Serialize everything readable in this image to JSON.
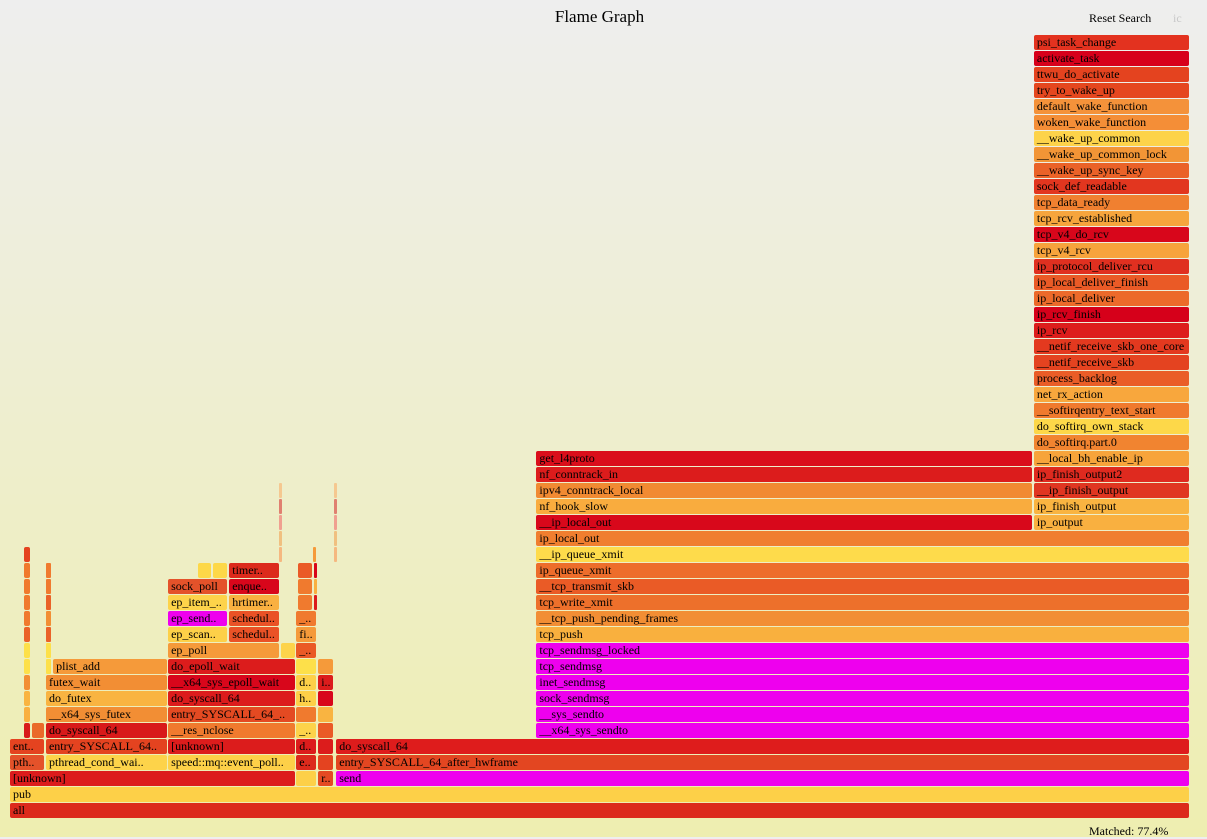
{
  "header": {
    "title": "Flame Graph",
    "reset_search": "Reset Search",
    "ic": "ic"
  },
  "footer": {
    "matched": "Matched: 77.4%"
  },
  "flame_graph": {
    "units": "percent of samples",
    "frame_fields": [
      "name",
      "depth",
      "start_pct",
      "end_pct",
      "color"
    ],
    "frames": [
      [
        "all",
        0,
        0,
        100,
        "#dc2a1c"
      ],
      [
        "pub",
        1,
        0,
        100,
        "#fdd048"
      ],
      [
        "[unknown]",
        2,
        0,
        24.2,
        "#dc1c1c"
      ],
      [
        "",
        2,
        24.26,
        26.05,
        "#fdd048"
      ],
      [
        "r..",
        2,
        26.12,
        27.5,
        "#e44a22"
      ],
      [
        "send",
        2,
        27.65,
        100,
        "#ee00ee"
      ],
      [
        "pth..",
        3,
        0,
        3.0,
        "#e4522a"
      ],
      [
        "pthread_cond_wai..",
        3,
        3.05,
        13.35,
        "#fdd34a"
      ],
      [
        "speed::mq::event_poll..",
        3,
        13.4,
        24.2,
        "#fdd048"
      ],
      [
        "e..",
        3,
        24.26,
        26.05,
        "#dc2a1c"
      ],
      [
        "",
        3,
        26.12,
        27.5,
        "#e44320"
      ],
      [
        "entry_SYSCALL_64_after_hwframe",
        3,
        27.65,
        100,
        "#e34621"
      ],
      [
        "ent..",
        4,
        0,
        3.0,
        "#e44320"
      ],
      [
        "entry_SYSCALL_64..",
        4,
        3.05,
        13.35,
        "#e44320"
      ],
      [
        "[unknown]",
        4,
        13.4,
        24.2,
        "#dc1c1c"
      ],
      [
        "d..",
        4,
        24.26,
        26.05,
        "#dc1c1c"
      ],
      [
        "",
        4,
        26.12,
        27.5,
        "#dc1c1c"
      ],
      [
        "do_syscall_64",
        4,
        27.65,
        100,
        "#de1c1c"
      ],
      [
        "",
        5,
        1.19,
        1.8,
        "#d81a1a"
      ],
      [
        "",
        5,
        1.87,
        3.0,
        "#ea6a2a"
      ],
      [
        "do_syscall_64",
        5,
        3.05,
        13.35,
        "#d81a1a"
      ],
      [
        "__res_nclose",
        5,
        13.4,
        24.2,
        "#f07a2e"
      ],
      [
        "_..",
        5,
        24.26,
        26.05,
        "#fdd34a"
      ],
      [
        "",
        5,
        26.12,
        27.5,
        "#ea5a26"
      ],
      [
        "__x64_sys_sendto",
        5,
        44.61,
        100,
        "#ee00ee"
      ],
      [
        "",
        6,
        1.19,
        1.8,
        "#f9b040"
      ],
      [
        "__x64_sys_futex",
        6,
        3.05,
        13.35,
        "#f28e34"
      ],
      [
        "entry_SYSCALL_64_..",
        6,
        13.4,
        24.2,
        "#e44a22"
      ],
      [
        "",
        6,
        24.26,
        26.05,
        "#f07a2e"
      ],
      [
        "",
        6,
        26.12,
        27.5,
        "#f9b441"
      ],
      [
        "__sys_sendto",
        6,
        44.61,
        100,
        "#ee00ee"
      ],
      [
        "",
        7,
        1.19,
        1.8,
        "#f9b441"
      ],
      [
        "do_futex",
        7,
        3.05,
        13.35,
        "#f9b441"
      ],
      [
        "do_syscall_64",
        7,
        13.4,
        24.2,
        "#dc1c1c"
      ],
      [
        "h..",
        7,
        24.26,
        26.05,
        "#fdd048"
      ],
      [
        "",
        7,
        26.12,
        27.5,
        "#d8061b"
      ],
      [
        "sock_sendmsg",
        7,
        44.61,
        100,
        "#ee00ee"
      ],
      [
        "",
        8,
        1.19,
        1.8,
        "#f28e34"
      ],
      [
        "futex_wait",
        8,
        3.05,
        13.35,
        "#f28e34"
      ],
      [
        "__x64_sys_epoll_wait",
        8,
        13.4,
        24.2,
        "#d8061b"
      ],
      [
        "d..",
        8,
        24.26,
        26.05,
        "#fdd048"
      ],
      [
        "i..",
        8,
        26.12,
        27.5,
        "#dc1c1c"
      ],
      [
        "inet_sendmsg",
        8,
        44.61,
        100,
        "#ee00ee"
      ],
      [
        "",
        9,
        1.19,
        1.8,
        "#fde04a"
      ],
      [
        "",
        9,
        3.05,
        3.6,
        "#fde04a"
      ],
      [
        "plist_add",
        9,
        3.65,
        13.35,
        "#f59a3a"
      ],
      [
        "do_epoll_wait",
        9,
        13.4,
        24.2,
        "#dc1c1c"
      ],
      [
        "",
        9,
        24.26,
        26.05,
        "#fde04a"
      ],
      [
        "",
        9,
        26.12,
        27.5,
        "#f59a3a"
      ],
      [
        "tcp_sendmsg",
        9,
        44.61,
        100,
        "#ee00ee"
      ],
      [
        "",
        10,
        1.19,
        1.8,
        "#fde04a"
      ],
      [
        "",
        10,
        3.05,
        3.6,
        "#fde04a"
      ],
      [
        "ep_poll",
        10,
        13.4,
        22.9,
        "#f59a3a"
      ],
      [
        "",
        10,
        22.99,
        24.2,
        "#fdd34a"
      ],
      [
        "_..",
        10,
        24.26,
        26.05,
        "#ea5a26"
      ],
      [
        "tcp_sendmsg_locked",
        10,
        44.61,
        100,
        "#ee00ee"
      ],
      [
        "",
        11,
        1.19,
        1.8,
        "#ea6228"
      ],
      [
        "",
        11,
        3.05,
        3.6,
        "#ea6228"
      ],
      [
        "ep_scan..",
        11,
        13.4,
        18.5,
        "#fdd048"
      ],
      [
        "schedul..",
        11,
        18.58,
        22.9,
        "#ea5226"
      ],
      [
        "fi..",
        11,
        24.26,
        26.05,
        "#f59a3a"
      ],
      [
        "tcp_push",
        11,
        44.61,
        100,
        "#f9b03e"
      ],
      [
        "",
        12,
        1.19,
        1.8,
        "#f07a2e"
      ],
      [
        "",
        12,
        3.05,
        3.6,
        "#f28e34"
      ],
      [
        "ep_send..",
        12,
        13.4,
        18.5,
        "#ee00ee"
      ],
      [
        "schedul..",
        12,
        18.58,
        22.9,
        "#ea5226"
      ],
      [
        "_..",
        12,
        24.26,
        26.05,
        "#f07a2e"
      ],
      [
        "__tcp_push_pending_frames",
        12,
        44.61,
        100,
        "#f28e34"
      ],
      [
        "",
        13,
        1.19,
        1.8,
        "#f07a2e"
      ],
      [
        "",
        13,
        3.05,
        3.6,
        "#ea6228"
      ],
      [
        "ep_item_..",
        13,
        13.4,
        18.5,
        "#fdd34a"
      ],
      [
        "hrtimer..",
        13,
        18.58,
        22.9,
        "#f9b040"
      ],
      [
        "",
        13,
        24.43,
        25.7,
        "#f07a2e"
      ],
      [
        "",
        13,
        25.78,
        26.05,
        "#dc1c1c"
      ],
      [
        "tcp_write_xmit",
        13,
        44.61,
        100,
        "#ed702b"
      ],
      [
        "",
        14,
        1.19,
        1.8,
        "#f07a2e"
      ],
      [
        "",
        14,
        3.05,
        3.6,
        "#f07a2e"
      ],
      [
        "sock_poll",
        14,
        13.4,
        18.5,
        "#e4522a"
      ],
      [
        "enque..",
        14,
        18.58,
        22.9,
        "#d8061b"
      ],
      [
        "",
        14,
        24.43,
        25.7,
        "#f07a2e"
      ],
      [
        "",
        14,
        25.78,
        26.05,
        "#f9b040"
      ],
      [
        "__tcp_transmit_skb",
        14,
        44.61,
        100,
        "#ea5b26"
      ],
      [
        "",
        15,
        1.19,
        1.8,
        "#f07a2e"
      ],
      [
        "",
        15,
        3.05,
        3.6,
        "#f07a2e"
      ],
      [
        "",
        15,
        15.95,
        17.15,
        "#fdd848"
      ],
      [
        "",
        15,
        17.22,
        18.5,
        "#fdd848"
      ],
      [
        "timer..",
        15,
        18.58,
        22.9,
        "#dc2a1c"
      ],
      [
        "",
        15,
        24.43,
        25.7,
        "#ea5a26"
      ],
      [
        "",
        15,
        25.78,
        26.05,
        "#d8061b"
      ],
      [
        "ip_queue_xmit",
        15,
        44.61,
        100,
        "#ed6d2b"
      ],
      [
        "",
        16,
        1.19,
        1.8,
        "#e44320"
      ],
      [
        "",
        16,
        22.82,
        22.99,
        "#f5b880"
      ],
      [
        "",
        16,
        25.7,
        26.05,
        "#f59a3a"
      ],
      [
        "",
        16,
        27.48,
        27.6,
        "#f5b880"
      ],
      [
        "__ip_queue_xmit",
        16,
        44.61,
        100,
        "#fedb4b"
      ],
      [
        "",
        17,
        22.82,
        22.99,
        "#f0c080"
      ],
      [
        "",
        17,
        27.48,
        27.6,
        "#f0c080"
      ],
      [
        "ip_local_out",
        17,
        44.61,
        100,
        "#f07e2f"
      ],
      [
        "",
        18,
        22.82,
        22.99,
        "#f0a090"
      ],
      [
        "",
        18,
        27.48,
        27.6,
        "#f0a090"
      ],
      [
        "__ip_local_out",
        18,
        44.61,
        86.7,
        "#d8081b"
      ],
      [
        "ip_output",
        18,
        86.77,
        100,
        "#f9b040"
      ],
      [
        "",
        19,
        22.82,
        22.99,
        "#e08070"
      ],
      [
        "",
        19,
        27.48,
        27.6,
        "#e08070"
      ],
      [
        "nf_hook_slow",
        19,
        44.61,
        86.7,
        "#f9ac3e"
      ],
      [
        "ip_finish_output",
        19,
        86.77,
        100,
        "#f9b441"
      ],
      [
        "",
        20,
        22.82,
        22.99,
        "#f5c890"
      ],
      [
        "",
        20,
        27.48,
        27.6,
        "#f5c890"
      ],
      [
        "ipv4_conntrack_local",
        20,
        44.61,
        86.7,
        "#f18a32"
      ],
      [
        "__ip_finish_output",
        20,
        86.77,
        100,
        "#e03621"
      ],
      [
        "nf_conntrack_in",
        21,
        44.61,
        86.7,
        "#dc1c1c"
      ],
      [
        "ip_finish_output2",
        21,
        86.77,
        100,
        "#df2a1f"
      ],
      [
        "get_l4proto",
        22,
        44.61,
        86.7,
        "#da0e1b"
      ],
      [
        "__local_bh_enable_ip",
        22,
        86.77,
        100,
        "#f7a43b"
      ],
      [
        "do_softirq.part.0",
        23,
        86.77,
        100,
        "#f18430"
      ],
      [
        "do_softirq_own_stack",
        24,
        86.77,
        100,
        "#fdd849"
      ],
      [
        "__softirqentry_text_start",
        25,
        86.77,
        100,
        "#f07a2e"
      ],
      [
        "net_rx_action",
        26,
        86.77,
        100,
        "#f8a73d"
      ],
      [
        "process_backlog",
        27,
        86.77,
        100,
        "#ea5d27"
      ],
      [
        "__netif_receive_skb",
        28,
        86.77,
        100,
        "#e44320"
      ],
      [
        "__netif_receive_skb_one_core",
        29,
        86.77,
        100,
        "#e3391f"
      ],
      [
        "ip_rcv",
        30,
        86.77,
        100,
        "#dd1d1c"
      ],
      [
        "ip_rcv_finish",
        31,
        86.77,
        100,
        "#d6001a"
      ],
      [
        "ip_local_deliver",
        32,
        86.77,
        100,
        "#ec6a2a"
      ],
      [
        "ip_local_deliver_finish",
        33,
        86.77,
        100,
        "#ea5a26"
      ],
      [
        "ip_protocol_deliver_rcu",
        34,
        86.77,
        100,
        "#e03020"
      ],
      [
        "tcp_v4_rcv",
        35,
        86.77,
        100,
        "#f7a33c"
      ],
      [
        "tcp_v4_do_rcv",
        36,
        86.77,
        100,
        "#d8061b"
      ],
      [
        "tcp_rcv_established",
        37,
        86.77,
        100,
        "#f6a53d"
      ],
      [
        "tcp_data_ready",
        38,
        86.77,
        100,
        "#f08030"
      ],
      [
        "sock_def_readable",
        39,
        86.77,
        100,
        "#e2361f"
      ],
      [
        "__wake_up_sync_key",
        40,
        86.77,
        100,
        "#ea6228"
      ],
      [
        "__wake_up_common_lock",
        41,
        86.77,
        100,
        "#f29536"
      ],
      [
        "__wake_up_common",
        42,
        86.77,
        100,
        "#fdd34a"
      ],
      [
        "woken_wake_function",
        43,
        86.77,
        100,
        "#f48e37"
      ],
      [
        "default_wake_function",
        44,
        86.77,
        100,
        "#f4923a"
      ],
      [
        "try_to_wake_up",
        45,
        86.77,
        100,
        "#e5471f"
      ],
      [
        "ttwu_do_activate",
        46,
        86.77,
        100,
        "#e4431f"
      ],
      [
        "activate_task",
        47,
        86.77,
        100,
        "#d7001b"
      ],
      [
        "psi_task_change",
        48,
        86.77,
        100,
        "#e3321f"
      ]
    ]
  }
}
